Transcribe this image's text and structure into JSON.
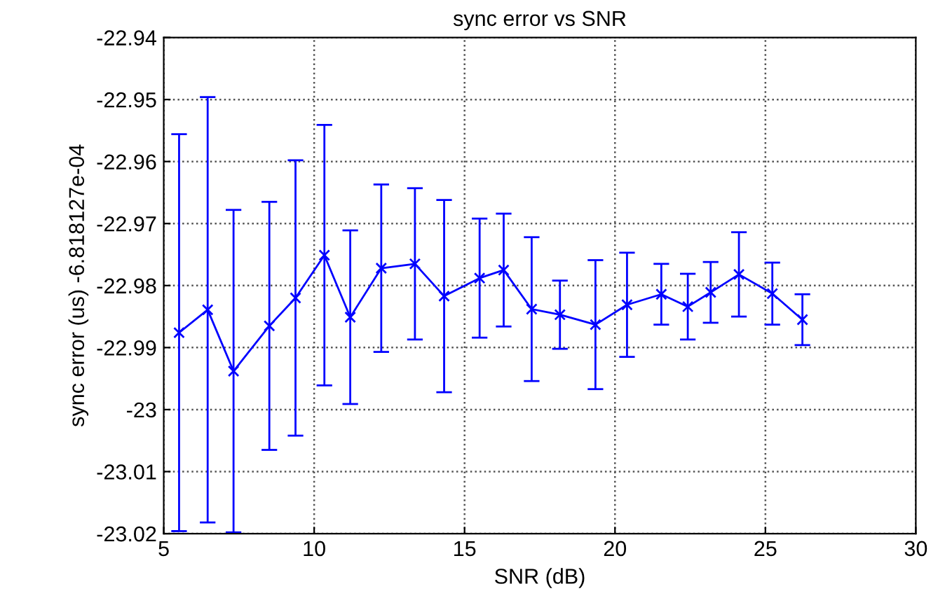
{
  "chart_data": {
    "type": "line",
    "title": "sync error vs SNR",
    "xlabel": "SNR (dB)",
    "ylabel": "sync error (us) -6.818127e-04",
    "series": [
      {
        "color": "#0000ff",
        "x": [
          5.51,
          6.46,
          7.32,
          8.51,
          9.38,
          10.34,
          11.2,
          12.23,
          13.35,
          14.32,
          15.5,
          16.3,
          17.23,
          18.17,
          19.35,
          20.4,
          21.54,
          22.42,
          23.18,
          24.12,
          25.23,
          26.23
        ],
        "values": [
          -22.9876,
          -22.9839,
          -22.9938,
          -22.9865,
          -22.982,
          -22.9751,
          -22.9851,
          -22.9772,
          -22.9765,
          -22.9817,
          -22.9788,
          -22.9775,
          -22.9838,
          -22.9847,
          -22.9863,
          -22.9831,
          -22.9814,
          -22.9834,
          -22.9811,
          -22.9782,
          -22.9813,
          -22.9855
        ],
        "errors": [
          0.032,
          0.0343,
          0.026,
          0.02,
          0.0222,
          0.021,
          0.014,
          0.0135,
          0.0122,
          0.0155,
          0.0096,
          0.0091,
          0.0116,
          0.0055,
          0.0104,
          0.0084,
          0.0049,
          0.0053,
          0.0049,
          0.0068,
          0.005,
          0.0041
        ]
      }
    ],
    "xlim": [
      5,
      30
    ],
    "xticks": [
      5,
      10,
      15,
      20,
      25,
      30
    ],
    "ylim": [
      -23.02,
      -22.94
    ],
    "yticks": [
      -22.94,
      -22.95,
      -22.96,
      -22.97,
      -22.98,
      -22.99,
      -23,
      -23.01,
      -23.02
    ],
    "grid": true,
    "marker": "cross",
    "line_style": "solid",
    "legend": false
  }
}
